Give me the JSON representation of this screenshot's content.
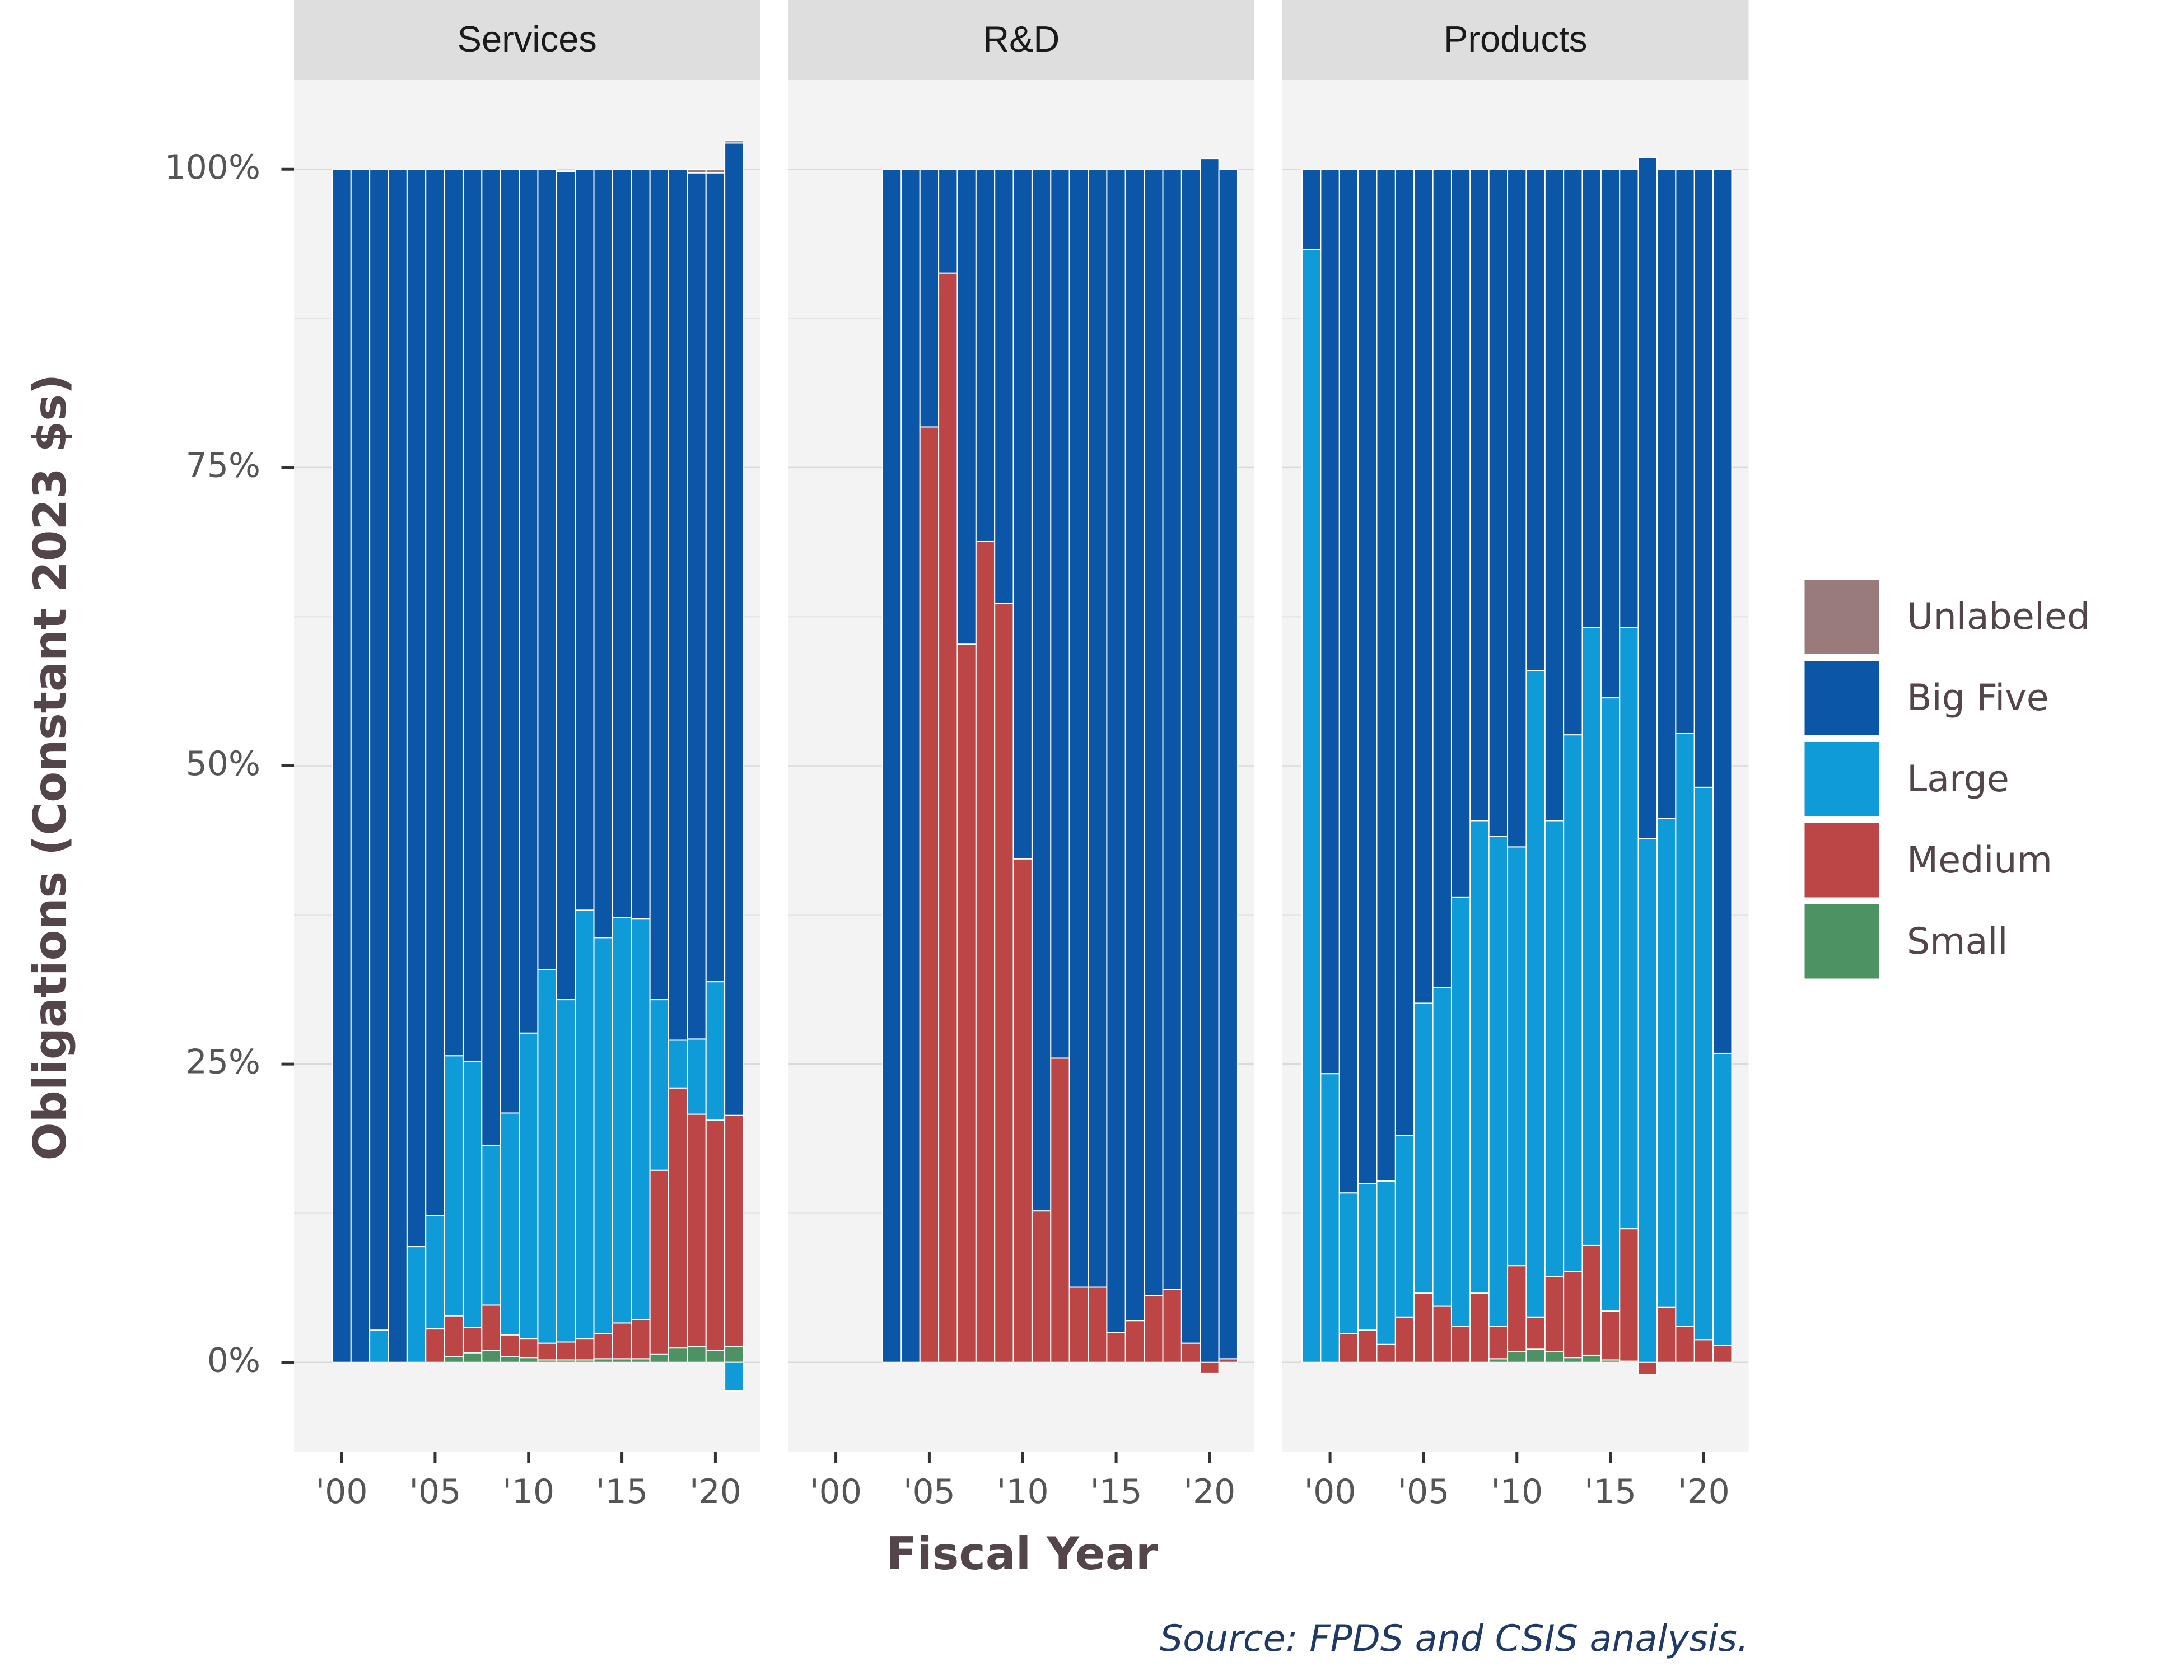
{
  "chart_data": {
    "type": "bar",
    "stacked": true,
    "ylabel": "Obligations (Constant 2023 $s)",
    "xlabel": "Fiscal Year",
    "source": "Source: FPDS and CSIS analysis.",
    "ylim": [
      -7.5,
      107.5
    ],
    "yticks": [
      {
        "value": 0,
        "label": "0%"
      },
      {
        "value": 25,
        "label": "25%"
      },
      {
        "value": 50,
        "label": "50%"
      },
      {
        "value": 75,
        "label": "75%"
      },
      {
        "value": 100,
        "label": "100%"
      }
    ],
    "yminorticks": [
      12.5,
      37.5,
      62.5,
      87.5
    ],
    "xlim": [
      1997.45,
      2022.4
    ],
    "xticks": [
      {
        "value": 2000,
        "label": "'00"
      },
      {
        "value": 2005,
        "label": "'05"
      },
      {
        "value": 2010,
        "label": "'10"
      },
      {
        "value": 2015,
        "label": "'15"
      },
      {
        "value": 2020,
        "label": "'20"
      }
    ],
    "grid": true,
    "legend_position": "right",
    "facets": [
      {
        "title": "Services",
        "x": [
          2000,
          2001,
          2002,
          2003,
          2004,
          2005,
          2006,
          2007,
          2008,
          2009,
          2010,
          2011,
          2012,
          2013,
          2014,
          2015,
          2016,
          2017,
          2018,
          2019,
          2020,
          2021
        ],
        "series": [
          {
            "name": "Unlabeled",
            "color": "#9a7b7b",
            "values": [
              null,
              null,
              null,
              null,
              null,
              null,
              null,
              null,
              null,
              null,
              null,
              null,
              null,
              null,
              null,
              null,
              null,
              null,
              null,
              0.3,
              0.3,
              0.2
            ]
          },
          {
            "name": "Big Five",
            "color": "#0b56a6",
            "values": [
              100,
              100,
              97.3,
              100,
              90.3,
              87.7,
              74.3,
              74.8,
              81.8,
              79.1,
              72.4,
              67.1,
              69.4,
              62.1,
              64.4,
              62.7,
              62.8,
              69.6,
              73.0,
              72.6,
              67.8,
              81.5
            ]
          },
          {
            "name": "Large",
            "color": "#0f9bd7",
            "values": [
              null,
              null,
              2.7,
              null,
              9.7,
              9.5,
              21.8,
              22.3,
              13.4,
              18.6,
              25.6,
              31.3,
              28.7,
              35.9,
              33.2,
              34.0,
              33.6,
              14.3,
              4.0,
              6.3,
              11.6,
              -2.4
            ]
          },
          {
            "name": "Medium",
            "color": "#bc4545",
            "values": [
              null,
              null,
              null,
              null,
              null,
              2.8,
              3.4,
              2.1,
              3.8,
              1.8,
              1.6,
              1.4,
              1.5,
              1.8,
              2.1,
              3.0,
              3.3,
              15.4,
              21.8,
              19.5,
              19.3,
              19.4
            ]
          },
          {
            "name": "Small",
            "color": "#4d9262",
            "values": [
              null,
              null,
              null,
              null,
              null,
              null,
              0.5,
              0.8,
              1.0,
              0.5,
              0.4,
              0.2,
              0.2,
              0.2,
              0.3,
              0.3,
              0.3,
              0.7,
              1.2,
              1.3,
              1.0,
              1.3
            ]
          }
        ]
      },
      {
        "title": "R&D",
        "x": [
          2000,
          2001,
          2002,
          2003,
          2004,
          2005,
          2006,
          2007,
          2008,
          2009,
          2010,
          2011,
          2012,
          2013,
          2014,
          2015,
          2016,
          2017,
          2018,
          2019,
          2020,
          2021
        ],
        "series": [
          {
            "name": "Big Five",
            "color": "#0b56a6",
            "values": [
              null,
              null,
              null,
              100,
              100,
              21.6,
              8.7,
              39.8,
              31.2,
              36.4,
              57.8,
              87.3,
              74.5,
              93.7,
              93.7,
              97.5,
              96.5,
              94.4,
              93.9,
              98.4,
              100.9,
              99.7
            ]
          },
          {
            "name": "Medium",
            "color": "#bc4545",
            "values": [
              null,
              null,
              null,
              null,
              null,
              78.4,
              91.3,
              60.2,
              68.8,
              63.6,
              42.2,
              12.7,
              25.5,
              6.3,
              6.3,
              2.5,
              3.5,
              5.6,
              6.1,
              1.6,
              -0.9,
              0.3
            ]
          }
        ]
      },
      {
        "title": "Products",
        "x": [
          1999,
          2000,
          2001,
          2002,
          2003,
          2004,
          2005,
          2006,
          2007,
          2008,
          2009,
          2010,
          2011,
          2012,
          2013,
          2014,
          2015,
          2016,
          2017,
          2018,
          2019,
          2020,
          2021
        ],
        "series": [
          {
            "name": "Big Five",
            "color": "#0b56a6",
            "values": [
              6.7,
              75.8,
              85.8,
              85.0,
              84.8,
              81.0,
              69.9,
              68.6,
              61.0,
              54.6,
              55.9,
              56.8,
              42.0,
              54.6,
              47.4,
              38.4,
              44.3,
              38.4,
              57.1,
              54.4,
              47.3,
              51.8,
              74.1
            ]
          },
          {
            "name": "Large",
            "color": "#0f9bd7",
            "values": [
              93.3,
              24.2,
              11.8,
              12.3,
              13.7,
              15.2,
              24.3,
              26.7,
              36.0,
              39.6,
              41.1,
              35.1,
              54.2,
              38.2,
              45.0,
              51.8,
              51.4,
              50.4,
              43.9,
              41.0,
              49.7,
              46.3,
              24.5
            ]
          },
          {
            "name": "Medium",
            "color": "#bc4545",
            "values": [
              null,
              null,
              2.4,
              2.7,
              1.5,
              3.8,
              5.8,
              4.7,
              3.0,
              5.8,
              2.7,
              7.2,
              2.7,
              6.3,
              7.2,
              9.2,
              4.1,
              11.1,
              -1.0,
              4.6,
              3.0,
              1.9,
              1.4
            ]
          },
          {
            "name": "Small",
            "color": "#4d9262",
            "values": [
              null,
              null,
              null,
              null,
              null,
              null,
              null,
              null,
              null,
              null,
              0.3,
              0.9,
              1.1,
              0.9,
              0.4,
              0.6,
              0.2,
              0.1,
              null,
              null,
              null,
              null,
              null
            ]
          }
        ]
      }
    ]
  }
}
